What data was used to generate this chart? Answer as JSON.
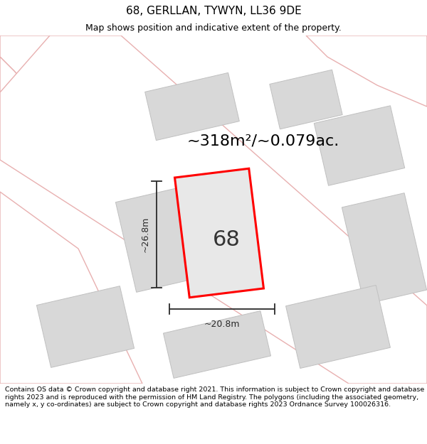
{
  "title": "68, GERLLAN, TYWYN, LL36 9DE",
  "subtitle": "Map shows position and indicative extent of the property.",
  "area_label": "~318m²/~0.079ac.",
  "plot_number": "68",
  "width_label": "~20.8m",
  "height_label": "~26.8m",
  "footer": "Contains OS data © Crown copyright and database right 2021. This information is subject to Crown copyright and database rights 2023 and is reproduced with the permission of HM Land Registry. The polygons (including the associated geometry, namely x, y co-ordinates) are subject to Crown copyright and database rights 2023 Ordnance Survey 100026316.",
  "map_bg": "#f7f4f4",
  "building_color": "#d8d8d8",
  "building_edge": "#c0c0c0",
  "plot_fill": "#e8e8e8",
  "plot_edge": "#ff0000",
  "dim_color": "#2a2a2a",
  "road_fill": "#ffffff",
  "road_stroke": "#e8b0b0",
  "title_fontsize": 11,
  "subtitle_fontsize": 9,
  "area_fontsize": 16,
  "plot_num_fontsize": 22,
  "dim_fontsize": 9,
  "footer_fontsize": 6.8
}
